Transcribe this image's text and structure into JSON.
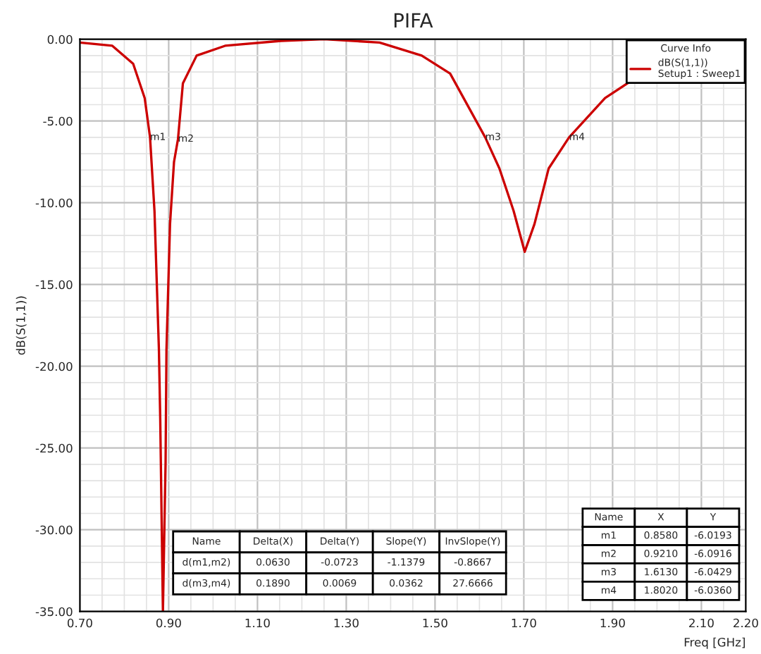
{
  "chart_data": {
    "type": "line",
    "title": "PIFA",
    "xlabel": "Freq [GHz]",
    "ylabel": "dB(S(1,1))",
    "legend_title": "Curve Info",
    "xlim": [
      0.7,
      2.2
    ],
    "ylim": [
      -35,
      0
    ],
    "xticks": [
      {
        "value": 0.7,
        "label": "0.70"
      },
      {
        "value": 0.9,
        "label": "0.90"
      },
      {
        "value": 1.1,
        "label": "1.10"
      },
      {
        "value": 1.3,
        "label": "1.30"
      },
      {
        "value": 1.5,
        "label": "1.50"
      },
      {
        "value": 1.7,
        "label": "1.70"
      },
      {
        "value": 1.9,
        "label": "1.90"
      },
      {
        "value": 2.1,
        "label": "2.10"
      },
      {
        "value": 2.2,
        "label": "2.20"
      }
    ],
    "yticks": [
      {
        "value": 0,
        "label": "0.00"
      },
      {
        "value": -5,
        "label": "-5.00"
      },
      {
        "value": -10,
        "label": "-10.00"
      },
      {
        "value": -15,
        "label": "-15.00"
      },
      {
        "value": -20,
        "label": "-20.00"
      },
      {
        "value": -25,
        "label": "-25.00"
      },
      {
        "value": -30,
        "label": "-30.00"
      },
      {
        "value": -35,
        "label": "-35.00"
      }
    ],
    "grid": true,
    "legend": "top right",
    "marker": "none",
    "line_style": "solid",
    "series": [
      {
        "name": "dB(S(1,1))\nSetup1 : Sweep1",
        "color": "#cc0000",
        "x": [
          0.7,
          0.773,
          0.82,
          0.846,
          0.858,
          0.868,
          0.878,
          0.881,
          0.887,
          0.893,
          0.895,
          0.903,
          0.912,
          0.921,
          0.932,
          0.963,
          1.027,
          1.153,
          1.25,
          1.375,
          1.47,
          1.534,
          1.613,
          1.645,
          1.677,
          1.702,
          1.724,
          1.756,
          1.802,
          1.883,
          1.978
        ],
        "values": [
          -0.2,
          -0.4,
          -1.5,
          -3.6,
          -6.0,
          -10.5,
          -19,
          -23.3,
          -35,
          -25.9,
          -19,
          -11.3,
          -7.5,
          -6.1,
          -2.7,
          -1.0,
          -0.4,
          -0.1,
          0,
          -0.2,
          -1.0,
          -2.1,
          -6.0,
          -7.9,
          -10.5,
          -13.0,
          -11.3,
          -7.9,
          -6.0,
          -3.6,
          -1.9
        ]
      }
    ],
    "annotations": [
      {
        "text": "m1",
        "x": 0.858,
        "y": -6.0
      },
      {
        "text": "m2",
        "x": 0.921,
        "y": -6.1
      },
      {
        "text": "m3",
        "x": 1.613,
        "y": -6.0
      },
      {
        "text": "m4",
        "x": 1.802,
        "y": -6.0
      },
      "Name",
      "Delta(X)",
      "Delta(Y)",
      "Slope(Y)",
      "InvSlope(Y)",
      "d(m1,m2)",
      "0.0630",
      "-0.0723",
      "-1.1379",
      "-0.8667",
      "d(m3,m4)",
      "0.1890",
      "0.0069",
      "0.0362",
      "27.6666",
      "Name",
      "X",
      "Y",
      "m1",
      "0.8580",
      "-6.0193",
      "m2",
      "0.9210",
      "-6.0916",
      "m3",
      "1.6130",
      "-6.0429",
      "m4",
      "1.8020",
      "-6.0360"
    ]
  }
}
